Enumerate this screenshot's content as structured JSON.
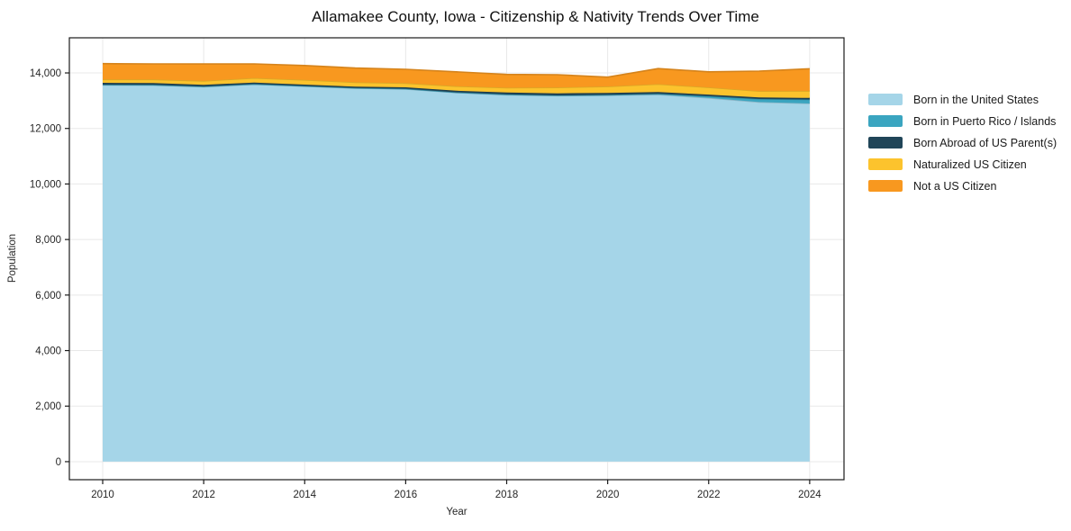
{
  "chart_data": {
    "type": "area",
    "stacked": true,
    "title": "Allamakee County, Iowa - Citizenship & Nativity Trends Over Time",
    "xlabel": "Year",
    "ylabel": "Population",
    "x": [
      2010,
      2011,
      2012,
      2013,
      2014,
      2015,
      2016,
      2017,
      2018,
      2019,
      2020,
      2021,
      2022,
      2023,
      2024
    ],
    "series": [
      {
        "name": "Born in the United States",
        "color": "#a5d5e8",
        "values": [
          13560,
          13560,
          13500,
          13590,
          13520,
          13450,
          13420,
          13290,
          13210,
          13180,
          13190,
          13220,
          13100,
          12950,
          12900
        ]
      },
      {
        "name": "Born in Puerto Rico / Islands",
        "color": "#3aa5c0",
        "values": [
          15,
          10,
          12,
          10,
          8,
          10,
          12,
          10,
          15,
          10,
          20,
          30,
          60,
          110,
          140
        ]
      },
      {
        "name": "Born Abroad of US Parent(s)",
        "color": "#204558",
        "values": [
          70,
          65,
          60,
          55,
          50,
          45,
          50,
          60,
          70,
          75,
          70,
          65,
          60,
          55,
          60
        ]
      },
      {
        "name": "Naturalized US Citizen",
        "color": "#fcc32d",
        "values": [
          120,
          130,
          140,
          160,
          170,
          160,
          150,
          160,
          170,
          210,
          230,
          280,
          260,
          230,
          250
        ]
      },
      {
        "name": "Not a US Citizen",
        "color": "#f8981f",
        "values": [
          570,
          560,
          610,
          510,
          520,
          510,
          500,
          520,
          480,
          460,
          340,
          560,
          560,
          720,
          800
        ]
      }
    ],
    "xlim": [
      2009.34,
      2024.68
    ],
    "ylim": [
      -650,
      15265
    ],
    "x_ticks": [
      2010,
      2012,
      2014,
      2016,
      2018,
      2020,
      2022,
      2024
    ],
    "y_ticks": [
      0,
      2000,
      4000,
      6000,
      8000,
      10000,
      12000,
      14000
    ],
    "grid": true,
    "grid_color": "#e8e8e8",
    "spine_color": "#1a1a1a",
    "tick_label_color": "#262626",
    "background": "#ffffff",
    "legend_position": "right"
  }
}
